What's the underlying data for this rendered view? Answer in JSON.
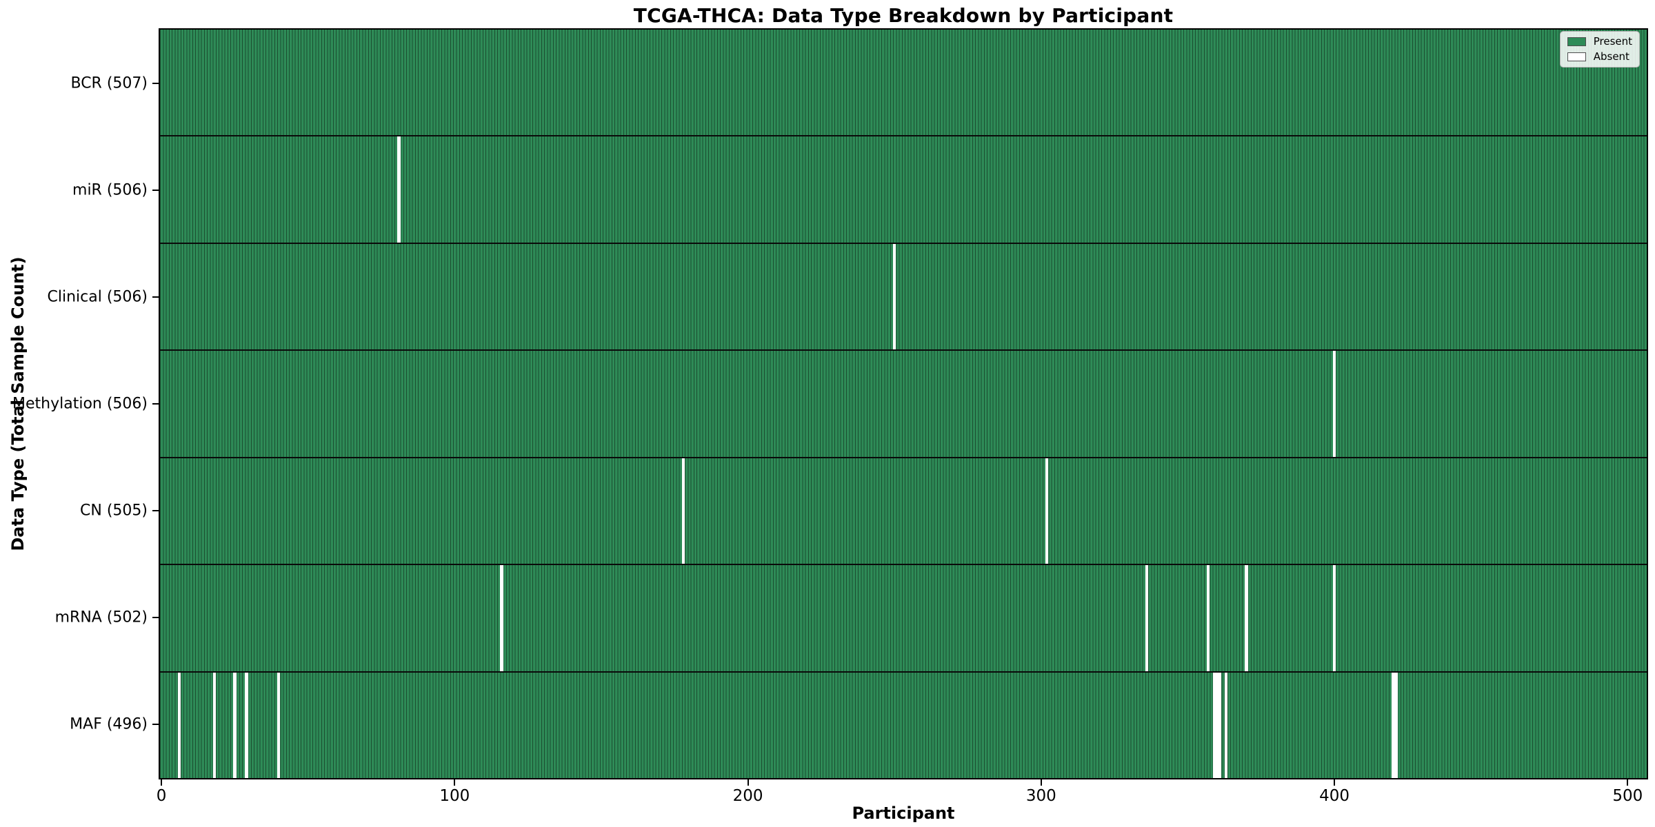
{
  "chart_data": {
    "type": "heatmap",
    "title": "TCGA-THCA: Data Type Breakdown by Participant",
    "xlabel": "Participant",
    "ylabel": "Data Type (Total Sample Count)",
    "n_participants": 507,
    "x_ticks": [
      0,
      100,
      200,
      300,
      400,
      500
    ],
    "x_axis_range": [
      0,
      507
    ],
    "grid": false,
    "legend": {
      "position": "upper right",
      "entries": [
        {
          "label": "Present",
          "color": "#2e8b57"
        },
        {
          "label": "Absent",
          "color": "#ffffff"
        }
      ]
    },
    "colors": {
      "present": "#2e8b57",
      "absent": "#ffffff",
      "bar_edge": "#1b4d30",
      "row_separator": "#0a0a0a",
      "plot_border": "#000000",
      "background": "#ffffff"
    },
    "rows": [
      {
        "data_type": "BCR",
        "label": "BCR (507)",
        "present_count": 507,
        "absent_participants": []
      },
      {
        "data_type": "miR",
        "label": "miR (506)",
        "present_count": 506,
        "absent_participants": [
          81
        ]
      },
      {
        "data_type": "Clinical",
        "label": "Clinical (506)",
        "present_count": 506,
        "absent_participants": [
          250
        ]
      },
      {
        "data_type": "Methylation",
        "label": "Methylation (506)",
        "present_count": 506,
        "absent_participants": [
          400
        ]
      },
      {
        "data_type": "CN",
        "label": "CN (505)",
        "present_count": 505,
        "absent_participants": [
          178,
          302
        ]
      },
      {
        "data_type": "mRNA",
        "label": "mRNA (502)",
        "present_count": 502,
        "absent_participants": [
          116,
          336,
          357,
          370,
          400
        ]
      },
      {
        "data_type": "MAF",
        "label": "MAF (496)",
        "present_count": 496,
        "absent_participants": [
          6,
          18,
          25,
          29,
          40,
          359,
          360,
          361,
          363,
          420,
          421
        ]
      }
    ]
  }
}
